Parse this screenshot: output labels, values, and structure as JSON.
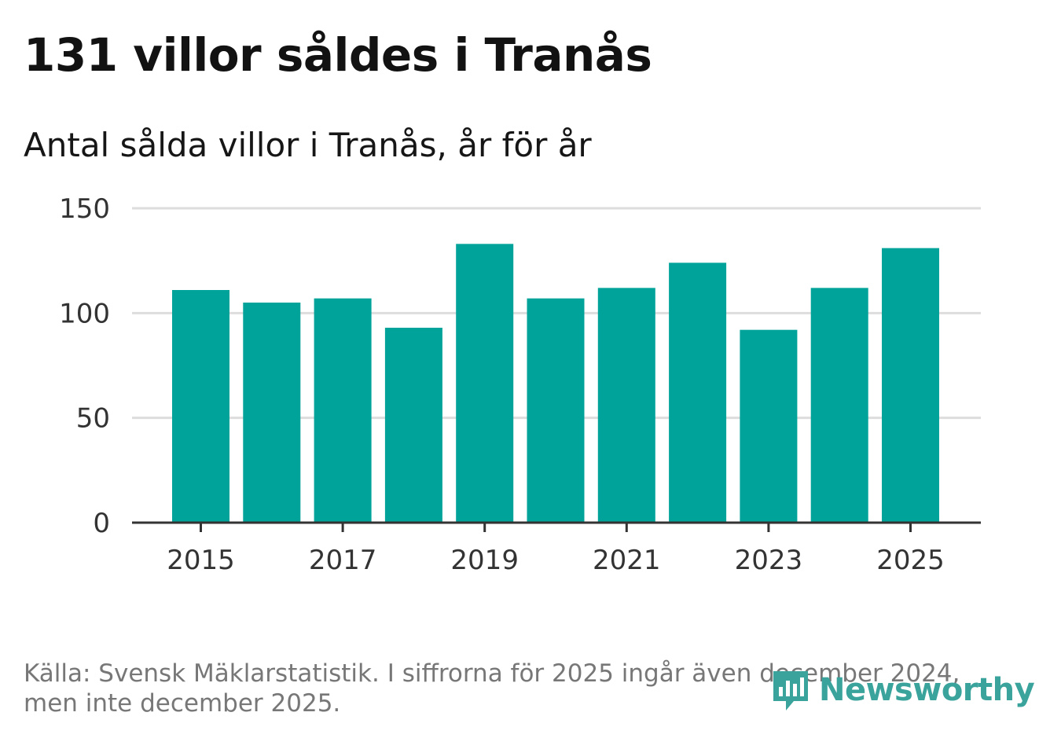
{
  "title": "131 villor såldes i Tranås",
  "subtitle": "Antal sålda villor i Tranås, år för år",
  "source": "Källa: Svensk Mäklarstatistik. I siffrorna för 2025 ingår även december 2024, men inte december 2025.",
  "logo": {
    "text": "Newsworthy",
    "icon": "bar-chart-speech-bubble-icon"
  },
  "colors": {
    "bar": "#00a39a",
    "grid": "#dddddd",
    "axis": "#333333",
    "logo": "#3aa39c"
  },
  "chart_data": {
    "type": "bar",
    "title": "131 villor såldes i Tranås",
    "subtitle": "Antal sålda villor i Tranås, år för år",
    "categories": [
      "2015",
      "2016",
      "2017",
      "2018",
      "2019",
      "2020",
      "2021",
      "2022",
      "2023",
      "2024",
      "2025"
    ],
    "values": [
      111,
      105,
      107,
      93,
      133,
      107,
      112,
      124,
      92,
      112,
      131
    ],
    "xticks": [
      "2015",
      "2017",
      "2019",
      "2021",
      "2023",
      "2025"
    ],
    "yticks": [
      0,
      50,
      100,
      150
    ],
    "ylim": [
      0,
      150
    ],
    "xlabel": "",
    "ylabel": "",
    "grid": true
  }
}
